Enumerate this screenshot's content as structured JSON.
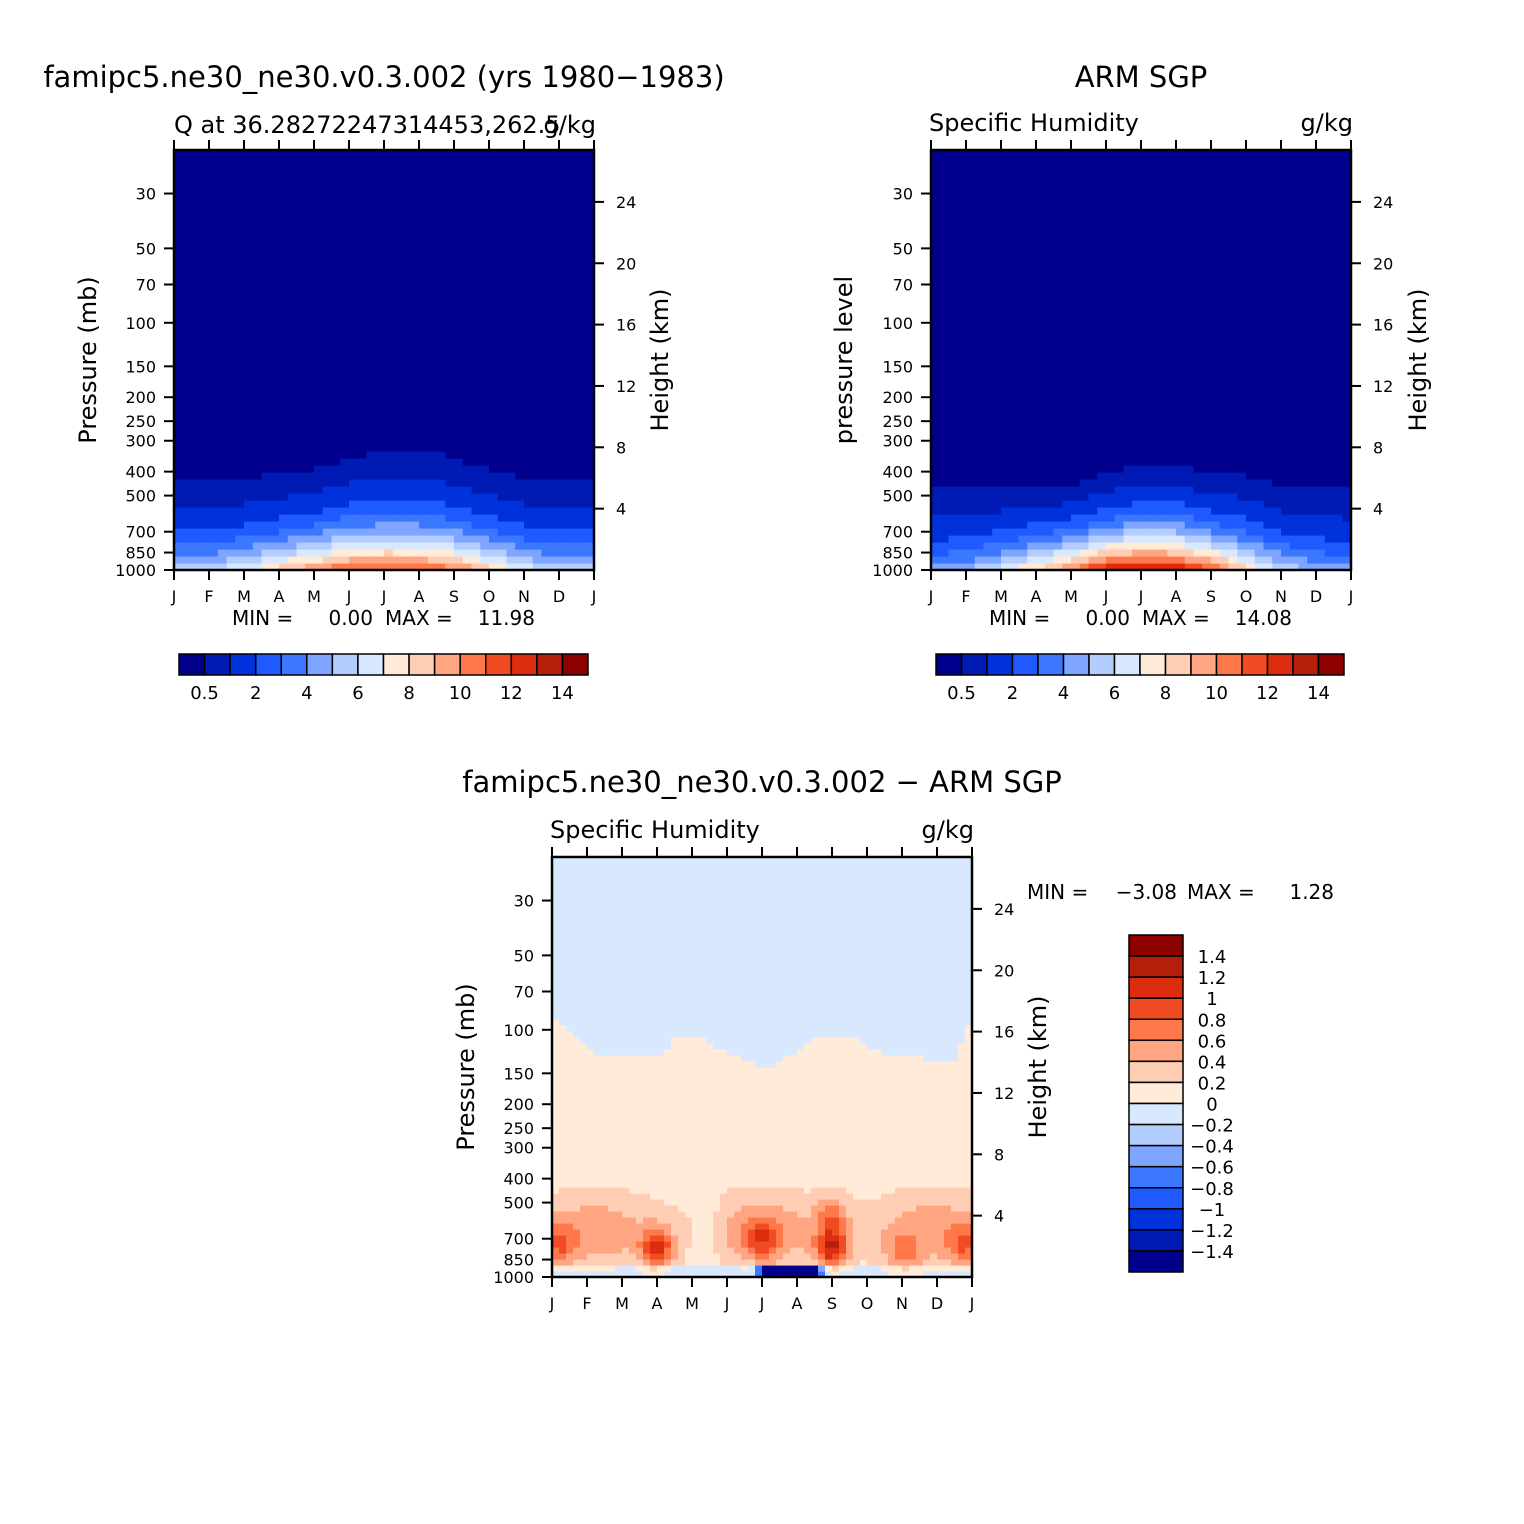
{
  "palettes": {
    "absolute": [
      "#00008c",
      "#001ab4",
      "#0032dc",
      "#1e5aff",
      "#3c78ff",
      "#7ea5ff",
      "#b4cdff",
      "#d7e8ff",
      "#ffebd7",
      "#ffcdb4",
      "#ffa582",
      "#ff784b",
      "#f04b23",
      "#dc2d0f",
      "#b41e0a",
      "#8c0000"
    ],
    "difference": [
      "#00008c",
      "#001ab4",
      "#0032dc",
      "#1e5aff",
      "#3c78ff",
      "#7ea5ff",
      "#b4cdff",
      "#d7e8ff",
      "#ffebd7",
      "#ffcdb4",
      "#ffa582",
      "#ff784b",
      "#f04b23",
      "#dc2d0f",
      "#b41e0a",
      "#8c0000"
    ]
  },
  "chart_data": [
    {
      "type": "heatmap",
      "title": "famipc5.ne30_ne30.v0.3.002 (yrs 1980−1983)",
      "subtitle_left": "Q at 36.28272247314453,262.5",
      "subtitle_right": "g/kg",
      "ylabel": "Pressure (mb)",
      "ylabel_right": "Height (km)",
      "x": [
        "J",
        "F",
        "M",
        "A",
        "M",
        "J",
        "J",
        "A",
        "S",
        "O",
        "N",
        "D",
        "J"
      ],
      "y_pressure_ticks": [
        "30",
        "50",
        "70",
        "100",
        "150",
        "200",
        "250",
        "300",
        "400",
        "500",
        "700",
        "850",
        "1000"
      ],
      "y_height_ticks": [
        "24",
        "20",
        "16",
        "12",
        "8",
        "4"
      ],
      "ylim": [
        1000,
        20
      ],
      "yscale": "log",
      "min_label": "MIN =",
      "min_value": "0.00",
      "max_label": "MAX =",
      "max_value": "11.98",
      "min": 0.0,
      "max": 11.98,
      "contour_levels": [
        0.5,
        1,
        2,
        3,
        4,
        5,
        6,
        7,
        8,
        9,
        10,
        11,
        12,
        13,
        14
      ],
      "colorbar_labels": [
        "0.5",
        "2",
        "4",
        "6",
        "8",
        "10",
        "12",
        "14"
      ],
      "surface_q_by_month": [
        5.5,
        5.8,
        7.0,
        8.5,
        10.0,
        11.5,
        11.8,
        11.6,
        10.5,
        8.5,
        6.8,
        5.8,
        5.5
      ],
      "moist_top_mb_by_month": [
        425,
        430,
        420,
        410,
        390,
        350,
        330,
        325,
        350,
        390,
        420,
        430,
        425
      ]
    },
    {
      "type": "heatmap",
      "title": "ARM SGP",
      "subtitle_left": "Specific Humidity",
      "subtitle_right": "g/kg",
      "ylabel": "pressure level",
      "ylabel_right": "Height (km)",
      "x": [
        "J",
        "F",
        "M",
        "A",
        "M",
        "J",
        "J",
        "A",
        "S",
        "O",
        "N",
        "D",
        "J"
      ],
      "y_pressure_ticks": [
        "30",
        "50",
        "70",
        "100",
        "150",
        "200",
        "250",
        "300",
        "400",
        "500",
        "700",
        "850",
        "1000"
      ],
      "y_height_ticks": [
        "24",
        "20",
        "16",
        "12",
        "8",
        "4"
      ],
      "ylim": [
        1000,
        20
      ],
      "yscale": "log",
      "min_label": "MIN =",
      "min_value": "0.00",
      "max_label": "MAX =",
      "max_value": "14.08",
      "min": 0.0,
      "max": 14.08,
      "contour_levels": [
        0.5,
        1,
        2,
        3,
        4,
        5,
        6,
        7,
        8,
        9,
        10,
        11,
        12,
        13,
        14
      ],
      "colorbar_labels": [
        "0.5",
        "2",
        "4",
        "6",
        "8",
        "10",
        "12",
        "14"
      ],
      "surface_q_by_month": [
        4.5,
        5.0,
        6.5,
        8.5,
        10.5,
        13.0,
        14.0,
        13.5,
        11.5,
        8.5,
        6.0,
        4.8,
        4.5
      ],
      "moist_top_mb_by_month": [
        470,
        470,
        460,
        460,
        450,
        400,
        370,
        370,
        400,
        410,
        450,
        470,
        470
      ]
    },
    {
      "type": "heatmap",
      "title": "famipc5.ne30_ne30.v0.3.002 − ARM SGP",
      "subtitle_left": "Specific Humidity",
      "subtitle_right": "g/kg",
      "ylabel": "Pressure (mb)",
      "ylabel_right": "Height (km)",
      "x": [
        "J",
        "F",
        "M",
        "A",
        "M",
        "J",
        "J",
        "A",
        "S",
        "O",
        "N",
        "D",
        "J"
      ],
      "y_pressure_ticks": [
        "30",
        "50",
        "70",
        "100",
        "150",
        "200",
        "250",
        "300",
        "400",
        "500",
        "700",
        "850",
        "1000"
      ],
      "y_height_ticks": [
        "24",
        "20",
        "16",
        "12",
        "8",
        "4"
      ],
      "ylim": [
        1000,
        20
      ],
      "yscale": "log",
      "min_label": "MIN =",
      "min_value": "−3.08",
      "max_label": "MAX =",
      "max_value": "1.28",
      "min": -3.08,
      "max": 1.28,
      "contour_levels": [
        -1.4,
        -1.2,
        -1,
        -0.8,
        -0.6,
        -0.4,
        -0.2,
        0,
        0.2,
        0.4,
        0.6,
        0.8,
        1,
        1.2,
        1.4
      ],
      "colorbar_labels": [
        "1.4",
        "1.2",
        "1",
        "0.8",
        "0.6",
        "0.4",
        "0.2",
        "0",
        "−0.2",
        "−0.4",
        "−0.6",
        "−0.8",
        "−1",
        "−1.2",
        "−1.4"
      ],
      "zero_line_mb_by_month": [
        85,
        110,
        130,
        130,
        130,
        110,
        105,
        125,
        145,
        105,
        105,
        125,
        135,
        85
      ],
      "zero_line_x": [
        0,
        0.8,
        1.4,
        2,
        3,
        3.5,
        4.3,
        5,
        6.2,
        7.5,
        8.5,
        9.5,
        11.5,
        12
      ]
    }
  ]
}
